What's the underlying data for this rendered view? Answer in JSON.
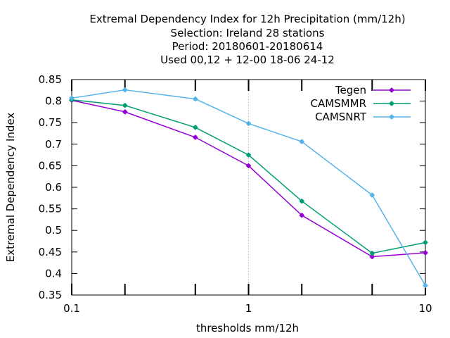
{
  "chart_data": {
    "type": "line",
    "title": [
      "Extremal Dependency Index  for 12h Precipitation (mm/12h)",
      "Selection: Ireland      28 stations",
      "Period: 20180601-20180614",
      "Used  00,12  + 12-00 18-06 24-12"
    ],
    "xlabel": "thresholds mm/12h",
    "ylabel": "Extremal Dependency Index",
    "xscale": "log",
    "xlim": [
      0.1,
      10
    ],
    "ylim": [
      0.35,
      0.85
    ],
    "x_ticks": [
      0.1,
      1,
      10
    ],
    "x_tick_labels": [
      "0.1",
      "1",
      "10"
    ],
    "x_minor_ticks": [
      0.2,
      0.5,
      2,
      5
    ],
    "y_ticks": [
      0.35,
      0.4,
      0.45,
      0.5,
      0.55,
      0.6,
      0.65,
      0.7,
      0.75,
      0.8,
      0.85
    ],
    "y_tick_labels": [
      "0.35",
      "0.4",
      "0.45",
      "0.5",
      "0.55",
      "0.6",
      "0.65",
      "0.7",
      "0.75",
      "0.8",
      "0.85"
    ],
    "grid": "dotted at major x ticks",
    "legend_position": "top-right",
    "x": [
      0.1,
      0.2,
      0.5,
      1,
      2,
      5,
      10
    ],
    "series": [
      {
        "name": "Tegen",
        "color": "#9400d3",
        "values": [
          0.802,
          0.775,
          0.716,
          0.65,
          0.535,
          0.439,
          0.448
        ]
      },
      {
        "name": "CAMSMMR",
        "color": "#009e73",
        "values": [
          0.803,
          0.79,
          0.739,
          0.675,
          0.568,
          0.447,
          0.472
        ]
      },
      {
        "name": "CAMSNRT",
        "color": "#56b4e9",
        "values": [
          0.807,
          0.826,
          0.805,
          0.748,
          0.706,
          0.582,
          0.372
        ]
      }
    ]
  }
}
